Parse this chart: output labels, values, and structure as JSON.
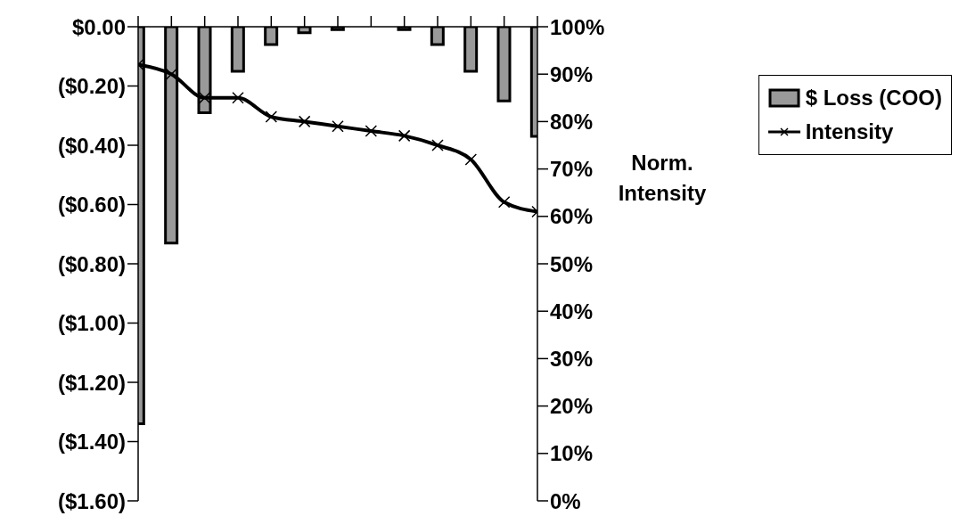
{
  "chart_data": {
    "type": "bar",
    "y2label": "Norm. Intensity",
    "categories": [
      null,
      null,
      null,
      null,
      null,
      null,
      null,
      null,
      null,
      null,
      null,
      null,
      null
    ],
    "series": [
      {
        "name": "$ Loss (COO)",
        "color": "#999999",
        "values": [
          -1.34,
          -0.73,
          -0.29,
          -0.15,
          -0.06,
          -0.02,
          -0.01,
          0,
          -0.01,
          -0.06,
          -0.15,
          -0.25,
          -0.37
        ]
      },
      {
        "name": "Intensity",
        "type": "line",
        "axis": "y2",
        "color": "#000000",
        "marker": "cross",
        "values": [
          92,
          90,
          85,
          85,
          81,
          80,
          79,
          78,
          77,
          75,
          72,
          63,
          61
        ]
      }
    ],
    "ylim": [
      -1.6,
      0
    ],
    "yticks": [
      {
        "value": 0,
        "label": "$0.00"
      },
      {
        "value": -0.2,
        "label": "($0.20)"
      },
      {
        "value": -0.4,
        "label": "($0.40)"
      },
      {
        "value": -0.6,
        "label": "($0.60)"
      },
      {
        "value": -0.8,
        "label": "($0.80)"
      },
      {
        "value": -1,
        "label": "($1.00)"
      },
      {
        "value": -1.2,
        "label": "($1.20)"
      },
      {
        "value": -1.4,
        "label": "($1.40)"
      },
      {
        "value": -1.6,
        "label": "($1.60)"
      }
    ],
    "y2lim": [
      0,
      100
    ],
    "y2ticks": [
      {
        "value": 0,
        "label": "0%"
      },
      {
        "value": 10,
        "label": "10%"
      },
      {
        "value": 20,
        "label": "20%"
      },
      {
        "value": 30,
        "label": "30%"
      },
      {
        "value": 40,
        "label": "40%"
      },
      {
        "value": 50,
        "label": "50%"
      },
      {
        "value": 60,
        "label": "60%"
      },
      {
        "value": 70,
        "label": "70%"
      },
      {
        "value": 80,
        "label": "80%"
      },
      {
        "value": 90,
        "label": "90%"
      },
      {
        "value": 100,
        "label": "100%"
      }
    ],
    "grid": false,
    "legend": "right"
  }
}
